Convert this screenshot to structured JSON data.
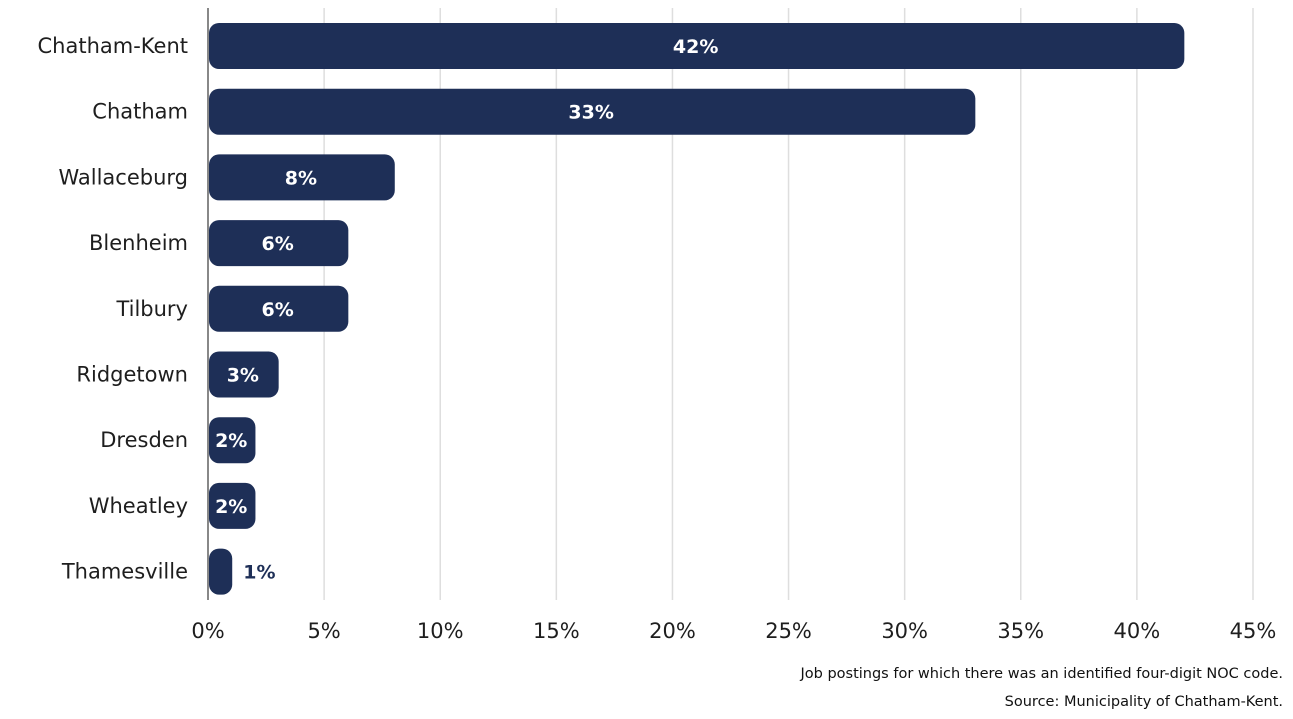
{
  "chart_data": {
    "type": "bar",
    "orientation": "horizontal",
    "categories": [
      "Chatham-Kent",
      "Chatham",
      "Wallaceburg",
      "Blenheim",
      "Tilbury",
      "Ridgetown",
      "Dresden",
      "Wheatley",
      "Thamesville"
    ],
    "values": [
      42,
      33,
      8,
      6,
      6,
      3,
      2,
      2,
      1
    ],
    "value_labels": [
      "42%",
      "33%",
      "8%",
      "6%",
      "6%",
      "3%",
      "2%",
      "2%",
      "1%"
    ],
    "xlim": [
      0,
      45
    ],
    "xticks": [
      0,
      5,
      10,
      15,
      20,
      25,
      30,
      35,
      40,
      45
    ],
    "xtick_labels": [
      "0%",
      "5%",
      "10%",
      "15%",
      "20%",
      "25%",
      "30%",
      "35%",
      "40%",
      "45%"
    ],
    "grid": "vertical",
    "bar_color": "#1e2f57",
    "grid_color": "#dedede"
  },
  "footnotes": {
    "line1": "Job postings for which there was an identified four-digit NOC code.",
    "line2": "Source: Municipality of Chatham-Kent."
  }
}
